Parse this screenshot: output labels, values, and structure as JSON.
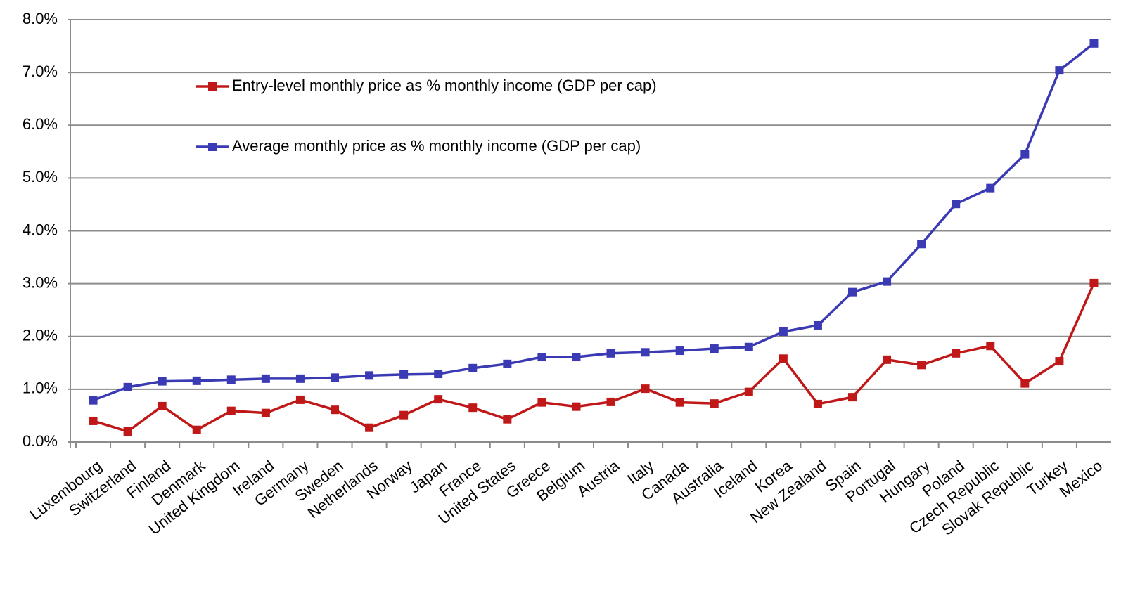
{
  "chart_data": {
    "type": "line",
    "categories": [
      "Luxembourg",
      "Switzerland",
      "Finland",
      "Denmark",
      "United Kingdom",
      "Ireland",
      "Germany",
      "Sweden",
      "Netherlands",
      "Norway",
      "Japan",
      "France",
      "United States",
      "Greece",
      "Belgium",
      "Austria",
      "Italy",
      "Canada",
      "Australia",
      "Iceland",
      "Korea",
      "New Zealand",
      "Spain",
      "Portugal",
      "Hungary",
      "Poland",
      "Czech Republic",
      "Slovak Republic",
      "Turkey",
      "Mexico"
    ],
    "series": [
      {
        "name": "Entry-level monthly price as % monthly income (GDP per cap)",
        "color": "#c01818",
        "values": [
          0.4,
          0.2,
          0.68,
          0.23,
          0.59,
          0.55,
          0.8,
          0.61,
          0.27,
          0.51,
          0.81,
          0.65,
          0.43,
          0.75,
          0.67,
          0.76,
          1.01,
          0.75,
          0.73,
          0.95,
          1.58,
          0.72,
          0.85,
          1.56,
          1.46,
          1.68,
          1.82,
          1.11,
          1.53,
          3.01
        ]
      },
      {
        "name": "Average monthly price as % monthly income (GDP per cap)",
        "color": "#3a3ab4",
        "values": [
          0.79,
          1.04,
          1.15,
          1.16,
          1.18,
          1.2,
          1.2,
          1.22,
          1.26,
          1.28,
          1.29,
          1.4,
          1.48,
          1.61,
          1.61,
          1.68,
          1.7,
          1.73,
          1.77,
          1.8,
          2.09,
          2.21,
          2.84,
          3.04,
          3.75,
          4.51,
          4.81,
          5.45,
          7.04,
          7.55
        ]
      }
    ],
    "ylim": [
      0,
      8
    ],
    "yticks": [
      {
        "value": 0,
        "label": "0.0%"
      },
      {
        "value": 1,
        "label": "1.0%"
      },
      {
        "value": 2,
        "label": "2.0%"
      },
      {
        "value": 3,
        "label": "3.0%"
      },
      {
        "value": 4,
        "label": "4.0%"
      },
      {
        "value": 5,
        "label": "5.0%"
      },
      {
        "value": 6,
        "label": "6.0%"
      },
      {
        "value": 7,
        "label": "7.0%"
      },
      {
        "value": 8,
        "label": "8.0%"
      }
    ],
    "grid": true
  }
}
